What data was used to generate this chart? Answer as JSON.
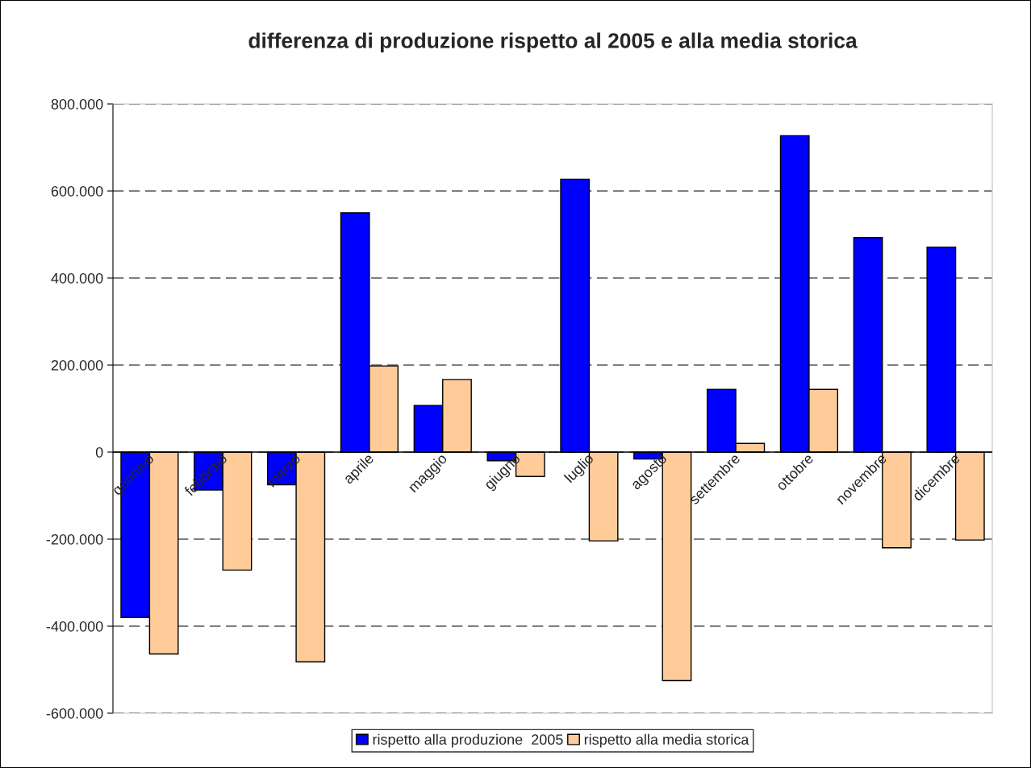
{
  "chart_data": {
    "type": "bar",
    "title": "differenza di produzione rispetto al 2005 e alla media storica",
    "categories": [
      "gennaio",
      "febbraio",
      "marzo",
      "aprile",
      "maggio",
      "giugno",
      "luglio",
      "agosto",
      "settembre",
      "ottobre",
      "novembre",
      "dicembre"
    ],
    "series": [
      {
        "name": "rispetto alla produzione  2005",
        "color": "#0000ff",
        "values": [
          -380000,
          -87000,
          -75000,
          550000,
          107000,
          -20000,
          627000,
          -16000,
          144000,
          727000,
          493000,
          471000
        ]
      },
      {
        "name": "rispetto alla media storica",
        "color": "#ffcc99",
        "values": [
          -464000,
          -271000,
          -482000,
          198000,
          167000,
          -56000,
          -204000,
          -525000,
          20000,
          144000,
          -220000,
          -202000
        ]
      }
    ],
    "ylim": [
      -600000,
      800000
    ],
    "yticks": [
      {
        "value": -600000,
        "label": "-600.000"
      },
      {
        "value": -400000,
        "label": "-400.000"
      },
      {
        "value": -200000,
        "label": "-200.000"
      },
      {
        "value": 0,
        "label": "0"
      },
      {
        "value": 200000,
        "label": "200.000"
      },
      {
        "value": 400000,
        "label": "400.000"
      },
      {
        "value": 600000,
        "label": "600.000"
      },
      {
        "value": 800000,
        "label": "800.000"
      }
    ],
    "grid": "y",
    "legend": "bottom"
  }
}
